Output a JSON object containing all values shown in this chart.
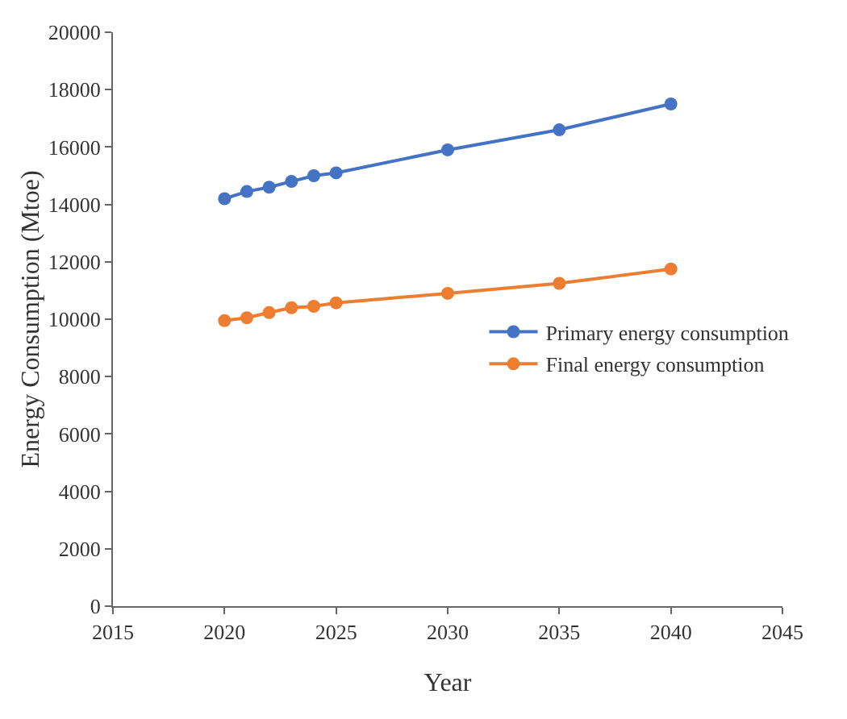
{
  "chart_data": {
    "type": "line",
    "xlabel": "Year",
    "ylabel": "Energy Consumption (Mtoe)",
    "x": [
      2020,
      2021,
      2022,
      2023,
      2024,
      2025,
      2030,
      2035,
      2040
    ],
    "series": [
      {
        "name": "Primary energy consumption",
        "color": "#4472c4",
        "values": [
          14200,
          14450,
          14600,
          14800,
          15000,
          15100,
          15900,
          16600,
          17500
        ]
      },
      {
        "name": "Final energy consumption",
        "color": "#ed7d31",
        "values": [
          9950,
          10050,
          10230,
          10400,
          10450,
          10570,
          10900,
          11250,
          11750
        ]
      }
    ],
    "xlim": [
      2015,
      2045
    ],
    "xticks": [
      2015,
      2020,
      2025,
      2030,
      2035,
      2040,
      2045
    ],
    "ylim": [
      0,
      20000
    ],
    "yticks": [
      0,
      2000,
      4000,
      6000,
      8000,
      10000,
      12000,
      14000,
      16000,
      18000,
      20000
    ],
    "grid": false,
    "legend": "right",
    "marker": "circle",
    "line_style": "solid"
  }
}
